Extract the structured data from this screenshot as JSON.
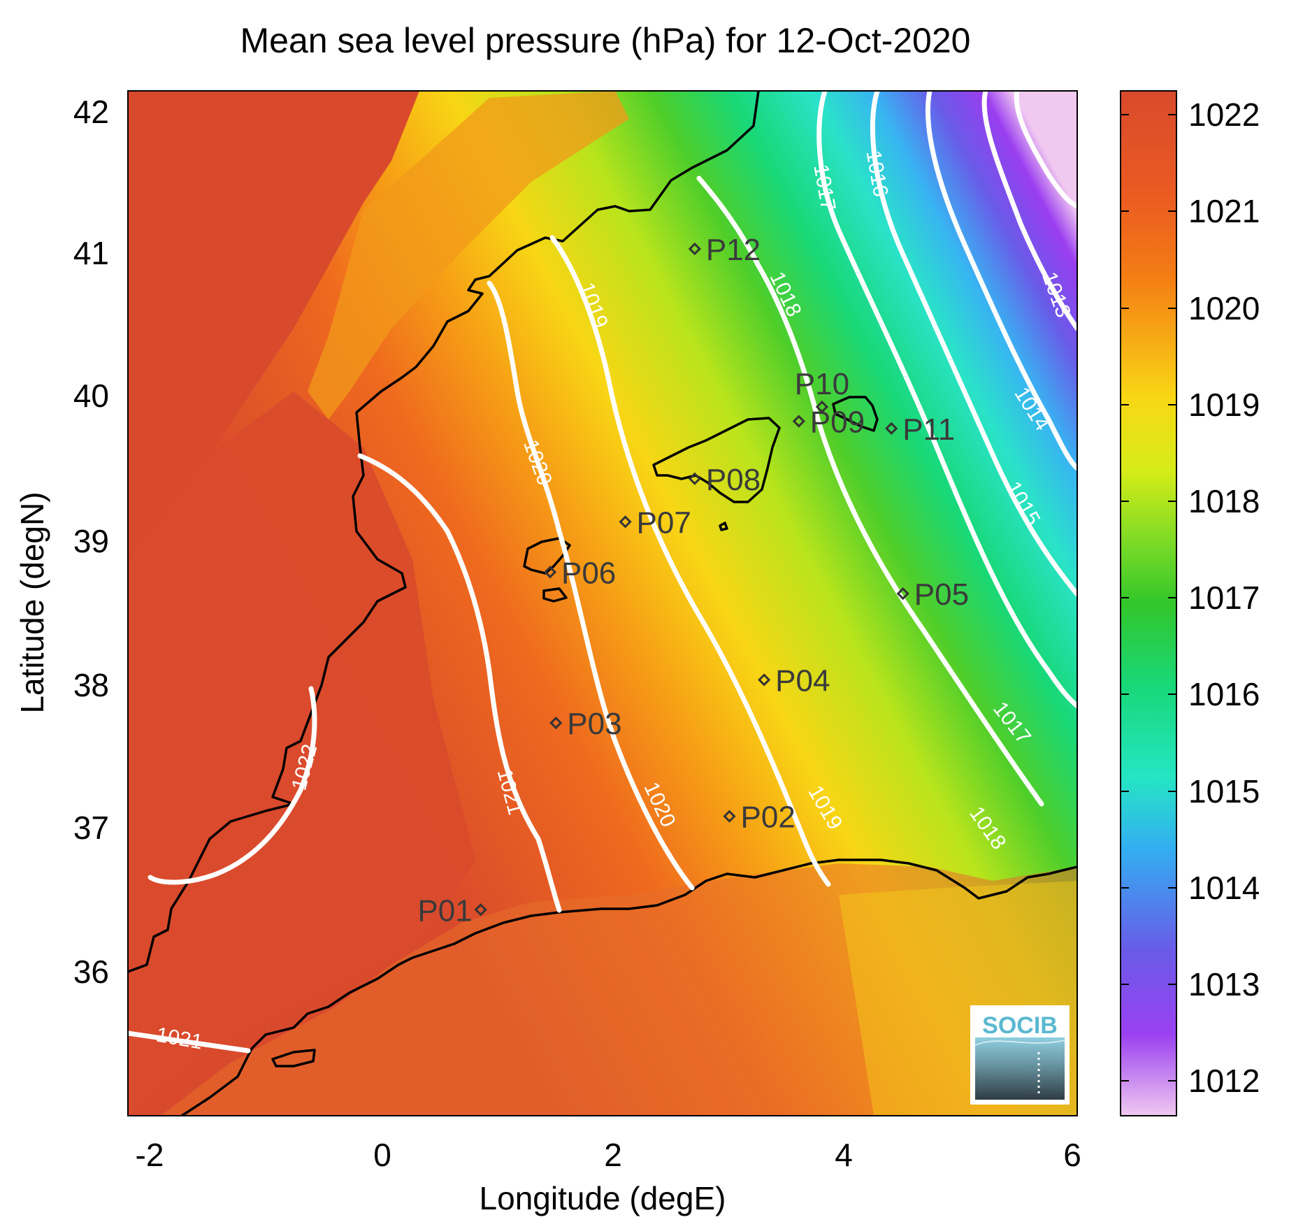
{
  "title": "Mean sea level pressure (hPa) for 12-Oct-2020",
  "axes": {
    "xlabel": "Longitude (degE)",
    "ylabel": "Latitude (degN)",
    "xticks": [
      "-2",
      "0",
      "2",
      "4",
      "6"
    ],
    "yticks": [
      "42",
      "41",
      "40",
      "39",
      "38",
      "37",
      "36"
    ]
  },
  "colorbar": {
    "ticks": [
      "1022",
      "1021",
      "1020",
      "1019",
      "1018",
      "1017",
      "1016",
      "1015",
      "1014",
      "1013",
      "1012"
    ],
    "colors": {
      "1022": "#d94a2c",
      "1021": "#f07a18",
      "1020": "#f8d215",
      "1019": "#b7e61a",
      "1018": "#33c62a",
      "1017": "#18d883",
      "1016": "#25e5c4",
      "1015": "#33aef2",
      "1014": "#6a5ae8",
      "1013": "#8a3bf0",
      "1012": "#efc0ee"
    }
  },
  "contour_labels": [
    "1022",
    "1021",
    "1020",
    "1019",
    "1018",
    "1017",
    "1016",
    "1015",
    "1014",
    "1013",
    "1021",
    "1020",
    "1019",
    "1018",
    "1017"
  ],
  "stations": [
    "P01",
    "P02",
    "P03",
    "P04",
    "P05",
    "P06",
    "P07",
    "P08",
    "P09",
    "P10",
    "P11",
    "P12"
  ],
  "logo": {
    "text": "SOCIB"
  },
  "chart_data": {
    "type": "heatmap",
    "title": "Mean sea level pressure (hPa) for 12-Oct-2020",
    "xlabel": "Longitude (degE)",
    "ylabel": "Latitude (degN)",
    "xlim": [
      -2.2,
      6
    ],
    "ylim": [
      35.1,
      42.2
    ],
    "colorbar_range": [
      1011.7,
      1022.3
    ],
    "units": "hPa",
    "date": "12-Oct-2020",
    "contour_levels": [
      1013,
      1014,
      1015,
      1016,
      1017,
      1018,
      1019,
      1020,
      1021,
      1022
    ],
    "stations": [
      {
        "name": "P01",
        "lon": 0.85,
        "lat": 36.5
      },
      {
        "name": "P02",
        "lon": 3.0,
        "lat": 37.15
      },
      {
        "name": "P03",
        "lon": 1.5,
        "lat": 37.8
      },
      {
        "name": "P04",
        "lon": 3.3,
        "lat": 38.1
      },
      {
        "name": "P05",
        "lon": 4.5,
        "lat": 38.7
      },
      {
        "name": "P06",
        "lon": 1.45,
        "lat": 38.85
      },
      {
        "name": "P07",
        "lon": 2.1,
        "lat": 39.2
      },
      {
        "name": "P08",
        "lon": 2.7,
        "lat": 39.5
      },
      {
        "name": "P09",
        "lon": 3.6,
        "lat": 39.9
      },
      {
        "name": "P10",
        "lon": 3.8,
        "lat": 40.0
      },
      {
        "name": "P11",
        "lon": 4.4,
        "lat": 39.85
      },
      {
        "name": "P12",
        "lon": 2.7,
        "lat": 41.1
      }
    ]
  }
}
